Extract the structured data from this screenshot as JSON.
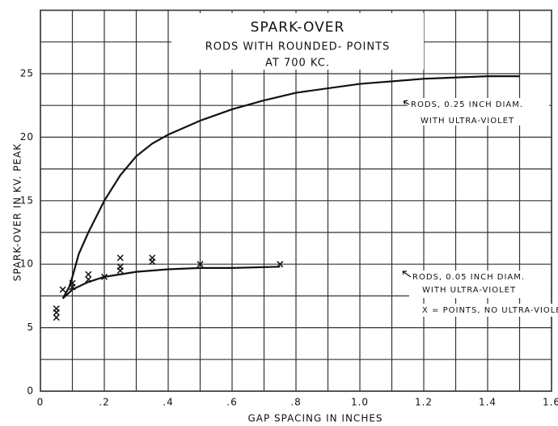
{
  "chart_data": {
    "type": "line",
    "title": "SPARK-OVER",
    "subtitle": [
      "RODS WITH ROUNDED- POINTS",
      "AT 700 KC."
    ],
    "x_label": "GAP SPACING IN INCHES",
    "y_label": "SPARK-OVER IN KV. PEAK",
    "xlim": [
      0,
      1.6
    ],
    "ylim": [
      0,
      30
    ],
    "xticks": [
      0,
      {
        "value": 0.2,
        "label": ".2"
      },
      {
        "value": 0.4,
        "label": ".4"
      },
      {
        "value": 0.6,
        "label": ".6"
      },
      {
        "value": 0.8,
        "label": ".8"
      },
      {
        "value": 1.0,
        "label": "1.0"
      },
      1.2,
      1.4,
      1.6
    ],
    "x_minor_ticks": [
      0.1,
      0.3,
      0.5,
      0.7,
      0.9,
      1.1,
      1.3,
      1.5
    ],
    "yticks": [
      0,
      5,
      10,
      15,
      20,
      25
    ],
    "y_minor_ticks": [
      2.5,
      7.5,
      12.5,
      17.5,
      22.5,
      27.5,
      30
    ],
    "grid": true,
    "series": [
      {
        "name": "RODS, 0.25 INCH DIAM.",
        "note": "WITH ULTRA-VIOLET",
        "color": "#111111",
        "x": [
          0.07,
          0.09,
          0.1,
          0.12,
          0.15,
          0.2,
          0.25,
          0.3,
          0.35,
          0.4,
          0.5,
          0.6,
          0.7,
          0.8,
          1.0,
          1.2,
          1.4,
          1.5
        ],
        "values": [
          7.3,
          8.2,
          9.0,
          10.8,
          12.5,
          15.0,
          17.0,
          18.5,
          19.5,
          20.2,
          21.3,
          22.2,
          22.9,
          23.5,
          24.2,
          24.6,
          24.8,
          24.8
        ]
      },
      {
        "name": "RODS, 0.05 INCH DIAM.",
        "note": "WITH ULTRA-VIOLET",
        "color": "#111111",
        "x": [
          0.07,
          0.1,
          0.15,
          0.2,
          0.3,
          0.4,
          0.5,
          0.6,
          0.75
        ],
        "values": [
          7.3,
          8.0,
          8.6,
          9.0,
          9.4,
          9.6,
          9.7,
          9.7,
          9.8
        ]
      },
      {
        "name": "X = POINTS, NO ULTRA-VIOLET",
        "type": "scatter",
        "marker": "x",
        "color": "#111111",
        "x": [
          0.05,
          0.05,
          0.05,
          0.07,
          0.1,
          0.1,
          0.15,
          0.15,
          0.2,
          0.25,
          0.25,
          0.25,
          0.35,
          0.35,
          0.5,
          0.75
        ],
        "values": [
          5.8,
          6.2,
          6.5,
          8.0,
          8.2,
          8.5,
          8.8,
          9.2,
          9.0,
          9.5,
          9.8,
          10.5,
          10.2,
          10.5,
          10.0,
          10.0
        ]
      }
    ]
  }
}
